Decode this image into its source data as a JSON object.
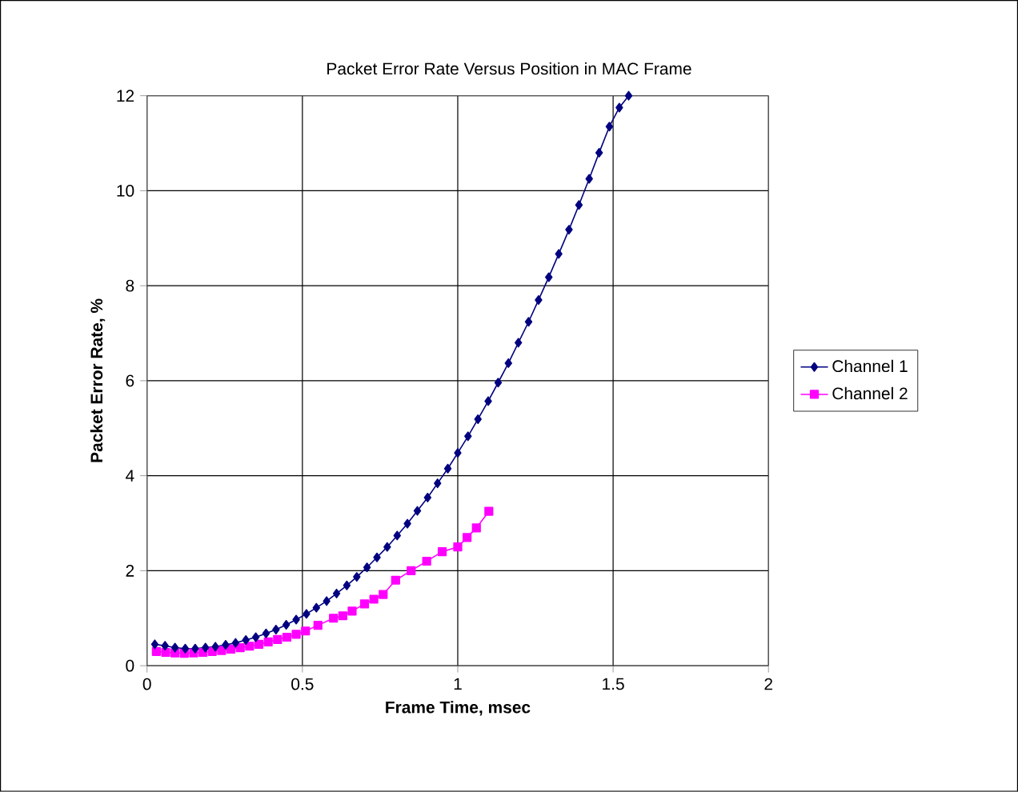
{
  "chart_data": {
    "type": "line",
    "title": "Packet Error Rate Versus Position in MAC Frame",
    "xlabel": "Frame Time, msec",
    "ylabel": "Packet Error Rate, %",
    "xlim": [
      0,
      2
    ],
    "xticks": [
      0,
      0.5,
      1,
      1.5,
      2
    ],
    "ylim": [
      0,
      12
    ],
    "yticks": [
      0,
      2,
      4,
      6,
      8,
      10,
      12
    ],
    "grid": true,
    "legend": "right",
    "series": [
      {
        "name": "Channel 1",
        "color": "#000080",
        "marker": "diamond",
        "x": [
          0.025,
          0.058,
          0.09,
          0.123,
          0.155,
          0.188,
          0.22,
          0.253,
          0.285,
          0.318,
          0.35,
          0.383,
          0.415,
          0.448,
          0.48,
          0.513,
          0.545,
          0.578,
          0.61,
          0.643,
          0.675,
          0.708,
          0.74,
          0.773,
          0.805,
          0.838,
          0.87,
          0.903,
          0.935,
          0.968,
          1.0,
          1.033,
          1.065,
          1.098,
          1.13,
          1.163,
          1.195,
          1.228,
          1.26,
          1.293,
          1.325,
          1.358,
          1.39,
          1.423,
          1.455,
          1.488,
          1.52,
          1.55
        ],
        "values": [
          0.45,
          0.42,
          0.38,
          0.36,
          0.36,
          0.38,
          0.4,
          0.44,
          0.48,
          0.54,
          0.6,
          0.68,
          0.76,
          0.86,
          0.97,
          1.09,
          1.22,
          1.36,
          1.52,
          1.69,
          1.87,
          2.07,
          2.28,
          2.5,
          2.74,
          2.99,
          3.26,
          3.54,
          3.84,
          4.15,
          4.48,
          4.83,
          5.19,
          5.57,
          5.96,
          6.37,
          6.8,
          7.24,
          7.7,
          8.18,
          8.67,
          9.18,
          9.7,
          10.25,
          10.8,
          11.35,
          11.75,
          12
        ]
      },
      {
        "name": "Channel 2",
        "color": "#ff00ff",
        "marker": "square",
        "x": [
          0.03,
          0.06,
          0.09,
          0.12,
          0.15,
          0.18,
          0.21,
          0.24,
          0.27,
          0.3,
          0.33,
          0.36,
          0.39,
          0.42,
          0.45,
          0.48,
          0.51,
          0.55,
          0.6,
          0.63,
          0.66,
          0.7,
          0.73,
          0.76,
          0.8,
          0.85,
          0.9,
          0.95,
          1.0,
          1.03,
          1.06,
          1.1
        ],
        "values": [
          0.3,
          0.28,
          0.27,
          0.26,
          0.27,
          0.28,
          0.3,
          0.32,
          0.35,
          0.38,
          0.41,
          0.45,
          0.5,
          0.55,
          0.6,
          0.66,
          0.73,
          0.85,
          1.0,
          1.05,
          1.15,
          1.3,
          1.4,
          1.5,
          1.8,
          2.0,
          2.2,
          2.4,
          2.5,
          2.7,
          2.9,
          3.25
        ]
      }
    ]
  }
}
